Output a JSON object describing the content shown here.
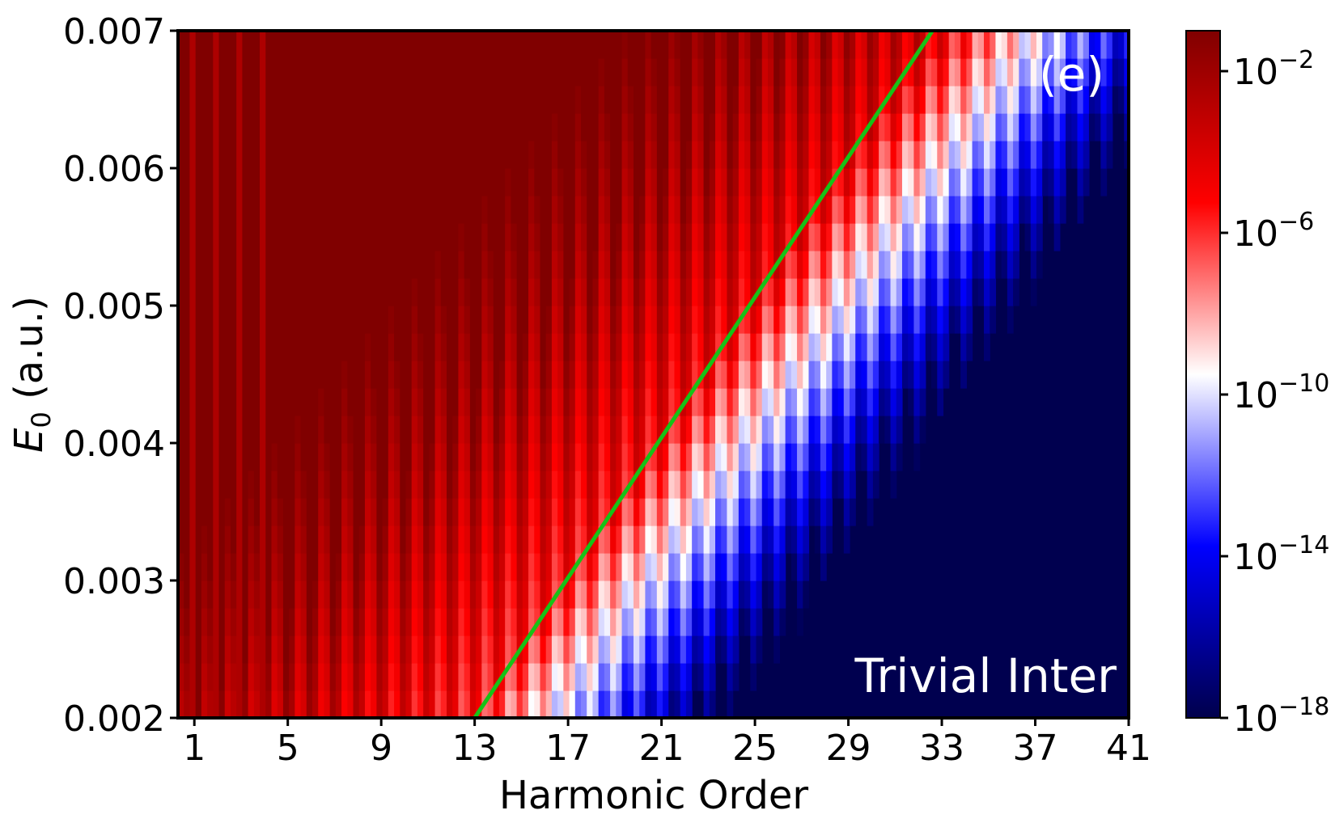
{
  "chart_data": {
    "type": "heatmap",
    "title": "",
    "panel_label": "(e)",
    "annotation": "Trivial Inter",
    "xlabel": "Harmonic Order",
    "ylabel_main": "E",
    "ylabel_sub": "0",
    "ylabel_unit": " (a.u.)",
    "xlim": [
      0.3,
      41
    ],
    "ylim": [
      0.002,
      0.007
    ],
    "x_ticks": [
      1,
      5,
      9,
      13,
      17,
      21,
      25,
      29,
      33,
      37,
      41
    ],
    "x_tick_labels": [
      "1",
      "5",
      "9",
      "13",
      "17",
      "21",
      "25",
      "29",
      "33",
      "37",
      "41"
    ],
    "y_ticks": [
      0.002,
      0.003,
      0.004,
      0.005,
      0.006,
      0.007
    ],
    "y_tick_labels": [
      "0.002",
      "0.003",
      "0.004",
      "0.005",
      "0.006",
      "0.007"
    ],
    "colorbar": {
      "scale": "log",
      "range_exponent": [
        -18,
        -1
      ],
      "colormap": "seismic",
      "tick_exponents": [
        -2,
        -6,
        -10,
        -14,
        -18
      ],
      "tick_base": "10",
      "tick_labels_exp": [
        "−2",
        "−6",
        "−10",
        "−14",
        "−18"
      ]
    },
    "cutoff_line": {
      "color": "#17c217",
      "points": [
        [
          13,
          0.002
        ],
        [
          32.6,
          0.007
        ]
      ]
    },
    "colors": {
      "background": "#00004f",
      "high": "#ff0000",
      "mid": "#ffffff",
      "low": "#0000ff"
    }
  }
}
